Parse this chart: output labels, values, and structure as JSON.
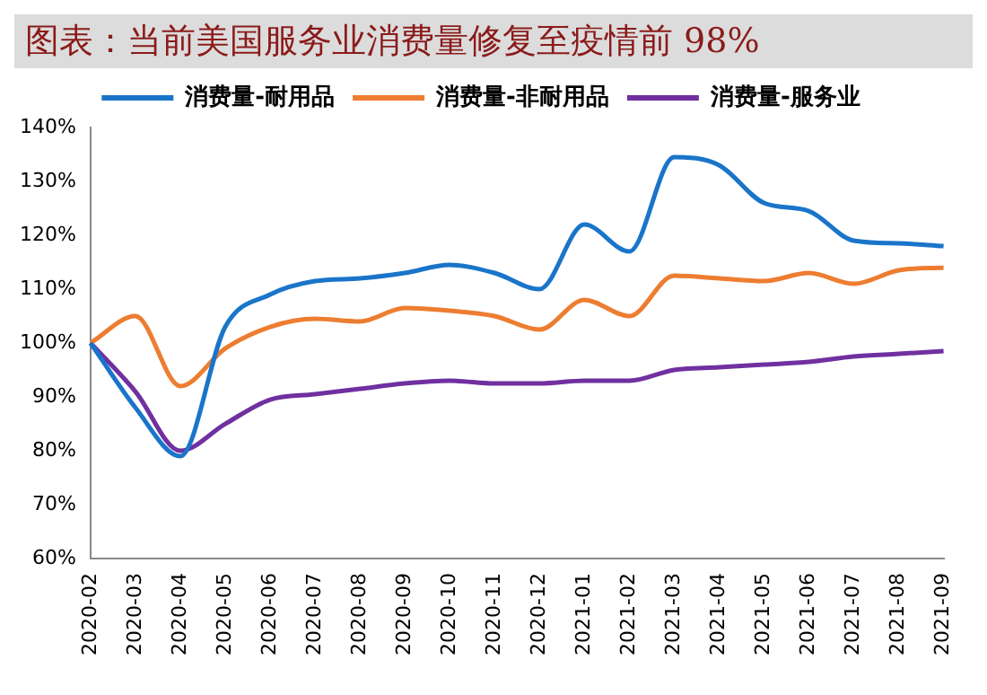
{
  "chart_data": {
    "type": "line",
    "title": "图表：当前美国服务业消费量修复至疫情前 98%",
    "categories": [
      "2020-02",
      "2020-03",
      "2020-04",
      "2020-05",
      "2020-06",
      "2020-07",
      "2020-08",
      "2020-09",
      "2020-10",
      "2020-11",
      "2020-12",
      "2021-01",
      "2021-02",
      "2021-03",
      "2021-04",
      "2021-05",
      "2021-06",
      "2021-07",
      "2021-08",
      "2021-09"
    ],
    "series": [
      {
        "name": "消费量-耐用品",
        "color": "#1a75c9",
        "values": [
          100,
          88,
          79,
          103,
          109,
          111.5,
          112,
          113,
          114.5,
          113,
          110,
          122,
          117,
          134.5,
          133,
          126,
          124.5,
          119,
          118.5,
          118
        ]
      },
      {
        "name": "消费量-非耐用品",
        "color": "#ed7d31",
        "values": [
          100,
          105,
          92,
          99,
          103,
          104.5,
          104,
          106.5,
          106,
          105,
          102.5,
          108,
          105,
          112.5,
          112,
          111.5,
          113,
          111,
          113.5,
          114
        ]
      },
      {
        "name": "消费量-服务业",
        "color": "#7030a0",
        "values": [
          100,
          91,
          80,
          85,
          89.5,
          90.5,
          91.5,
          92.5,
          93,
          92.5,
          92.5,
          93,
          93,
          95,
          95.5,
          96,
          96.5,
          97.5,
          98,
          98.5
        ]
      }
    ],
    "ylim": [
      60,
      140
    ],
    "yticks": [
      {
        "value": 60,
        "label": "60%"
      },
      {
        "value": 70,
        "label": "70%"
      },
      {
        "value": 80,
        "label": "80%"
      },
      {
        "value": 90,
        "label": "90%"
      },
      {
        "value": 100,
        "label": "100%"
      },
      {
        "value": 110,
        "label": "110%"
      },
      {
        "value": 120,
        "label": "120%"
      },
      {
        "value": 130,
        "label": "130%"
      },
      {
        "value": 140,
        "label": "140%"
      }
    ],
    "grid": false,
    "legend": "top",
    "marker": "none",
    "line_style": "solid"
  }
}
